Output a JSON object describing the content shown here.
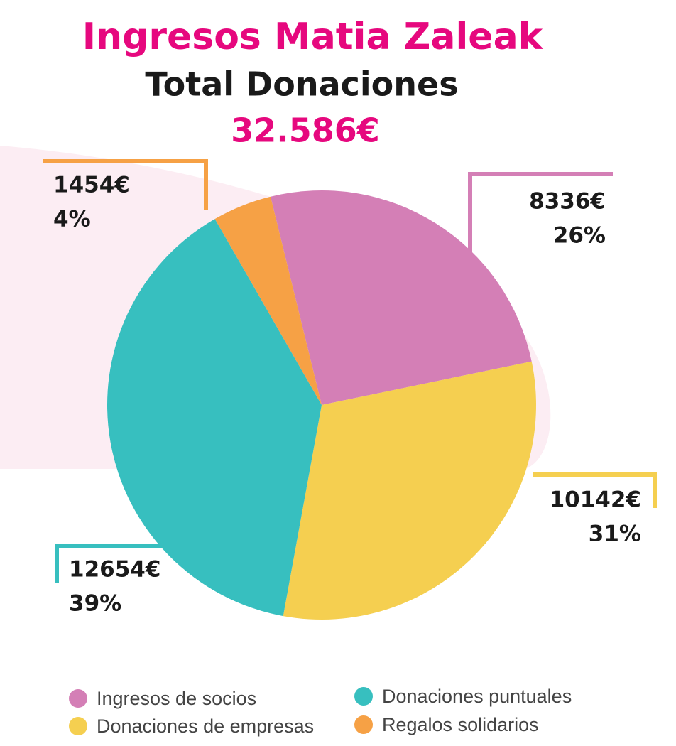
{
  "chart_data": {
    "type": "pie",
    "title": "Ingresos Matia Zaleak",
    "subtitle": "Total Donaciones",
    "total_label": "32.586€",
    "categories": [
      "Ingresos de socios",
      "Donaciones de empresas",
      "Donaciones puntuales",
      "Regalos solidarios"
    ],
    "values": [
      8336,
      10142,
      12654,
      1454
    ],
    "value_labels": [
      "8336€",
      "10142€",
      "12654€",
      "1454€"
    ],
    "percentages": [
      26,
      31,
      39,
      4
    ],
    "percentage_labels": [
      "26%",
      "31%",
      "39%",
      "4%"
    ],
    "colors": [
      "#d47fb6",
      "#f5cf50",
      "#37bfbf",
      "#f6a145"
    ],
    "legend": "bottom"
  }
}
